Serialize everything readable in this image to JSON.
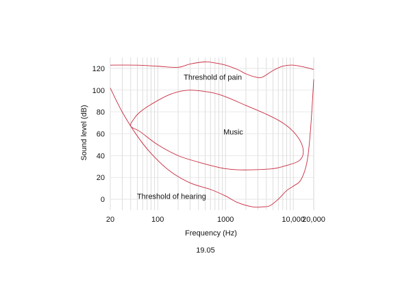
{
  "chart_data": {
    "type": "line",
    "xscale": "log",
    "xlim": [
      20,
      20000
    ],
    "ylim": [
      -10,
      130
    ],
    "xlabel": "Frequency (Hz)",
    "ylabel": "Sound level (dB)",
    "xticks": [
      {
        "value": 20,
        "label": "20"
      },
      {
        "value": 100,
        "label": "100"
      },
      {
        "value": 1000,
        "label": "1000"
      },
      {
        "value": 10000,
        "label": "10,000"
      },
      {
        "value": 20000,
        "label": "20,000"
      }
    ],
    "yticks": [
      0,
      20,
      40,
      60,
      80,
      100,
      120
    ],
    "grid": true,
    "curve_color": "#c8283c",
    "series": [
      {
        "label": "Threshold of pain",
        "x": [
          20,
          50,
          100,
          200,
          300,
          500,
          700,
          1000,
          1500,
          2000,
          2800,
          3500,
          5000,
          7000,
          10000,
          15000,
          20000
        ],
        "y": [
          123,
          123,
          122,
          121,
          124,
          126,
          125,
          123,
          119,
          115,
          112,
          112,
          118,
          122,
          123,
          121,
          119
        ]
      },
      {
        "label": "Music",
        "closed": true,
        "x": [
          40,
          45,
          55,
          80,
          150,
          280,
          600,
          1000,
          2000,
          4000,
          7000,
          10000,
          13000,
          14000,
          12000,
          8000,
          5000,
          2500,
          1500,
          1000,
          700,
          400,
          200,
          100,
          55,
          40
        ],
        "y": [
          67,
          74,
          80,
          87,
          96,
          100,
          98,
          94,
          86,
          78,
          70,
          62,
          52,
          42,
          35,
          31,
          28,
          27,
          27,
          28,
          30,
          34,
          40,
          50,
          62,
          67
        ]
      },
      {
        "label": "Threshold of hearing",
        "x": [
          20,
          30,
          50,
          80,
          150,
          300,
          600,
          1000,
          1500,
          2500,
          3500,
          4500,
          6000,
          8000,
          10000,
          13000,
          16000,
          18000,
          20000
        ],
        "y": [
          102,
          80,
          58,
          42,
          26,
          15,
          9,
          3,
          -3,
          -7,
          -7,
          -6,
          0,
          8,
          12,
          18,
          35,
          65,
          110
        ]
      }
    ],
    "annotations": [
      {
        "text": "Threshold of pain",
        "x": 650,
        "y": 112
      },
      {
        "text": "Music",
        "x": 1300,
        "y": 62
      },
      {
        "text": "Threshold of hearing",
        "x": 160,
        "y": 3
      }
    ],
    "figure_number": "19.05"
  }
}
